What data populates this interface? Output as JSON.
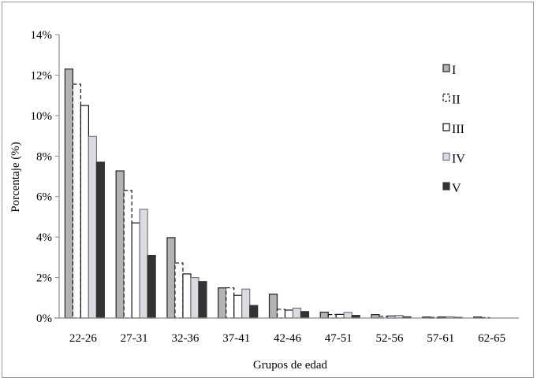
{
  "chart_data": {
    "type": "bar",
    "title": "",
    "xlabel": "Grupos de edad",
    "ylabel": "Porcentaje (%)",
    "ylim": [
      0,
      14
    ],
    "yticks": [
      "0%",
      "2%",
      "4%",
      "6%",
      "8%",
      "10%",
      "12%",
      "14%"
    ],
    "ytick_values": [
      0,
      2,
      4,
      6,
      8,
      10,
      12,
      14
    ],
    "categories": [
      "22-26",
      "27-31",
      "32-36",
      "37-41",
      "42-46",
      "47-51",
      "52-56",
      "57-61",
      "62-65"
    ],
    "grid": false,
    "legend_position": "right",
    "series": [
      {
        "name": "I",
        "fill": "#b3b3b3",
        "stroke": "#222222",
        "dash": false,
        "values": [
          12.3,
          7.27,
          3.97,
          1.49,
          1.18,
          0.29,
          0.17,
          0.05,
          0.05
        ]
      },
      {
        "name": "II",
        "fill": "#ffffff",
        "stroke": "#111111",
        "dash": true,
        "values": [
          11.55,
          6.3,
          2.72,
          1.49,
          0.43,
          0.17,
          0.08,
          0.03,
          0.02
        ]
      },
      {
        "name": "III",
        "fill": "#ffffff",
        "stroke": "#111111",
        "dash": false,
        "values": [
          10.5,
          4.7,
          2.18,
          1.12,
          0.39,
          0.18,
          0.1,
          0.05,
          0
        ]
      },
      {
        "name": "IV",
        "fill": "#dcdbe0",
        "stroke": "#7a7488",
        "dash": false,
        "values": [
          8.97,
          5.37,
          2.0,
          1.43,
          0.49,
          0.28,
          0.13,
          0.06,
          0
        ]
      },
      {
        "name": "V",
        "fill": "#333333",
        "stroke": "#333333",
        "dash": false,
        "values": [
          7.7,
          3.09,
          1.8,
          0.62,
          0.32,
          0.13,
          0.06,
          0.03,
          0
        ]
      }
    ]
  }
}
